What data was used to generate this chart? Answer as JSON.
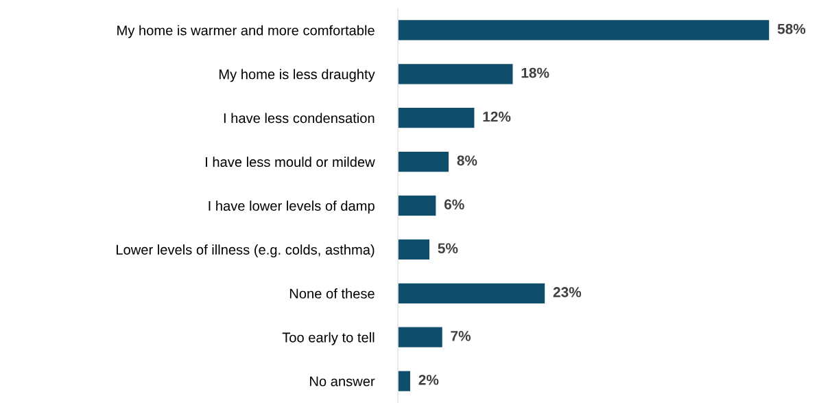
{
  "chart_data": {
    "type": "bar",
    "orientation": "horizontal",
    "categories": [
      "My home is warmer and more comfortable",
      "My home is less draughty",
      "I have less condensation",
      "I have less mould or mildew",
      "I have lower levels of damp",
      "Lower levels of illness (e.g. colds, asthma)",
      "None of these",
      "Too early to tell",
      "No answer"
    ],
    "values": [
      58,
      18,
      12,
      8,
      6,
      5,
      23,
      7,
      2
    ],
    "value_labels": [
      "58%",
      "18%",
      "12%",
      "8%",
      "6%",
      "5%",
      "23%",
      "7%",
      "2%"
    ],
    "color": "#0f4d6b",
    "grid": false,
    "legend": false
  }
}
